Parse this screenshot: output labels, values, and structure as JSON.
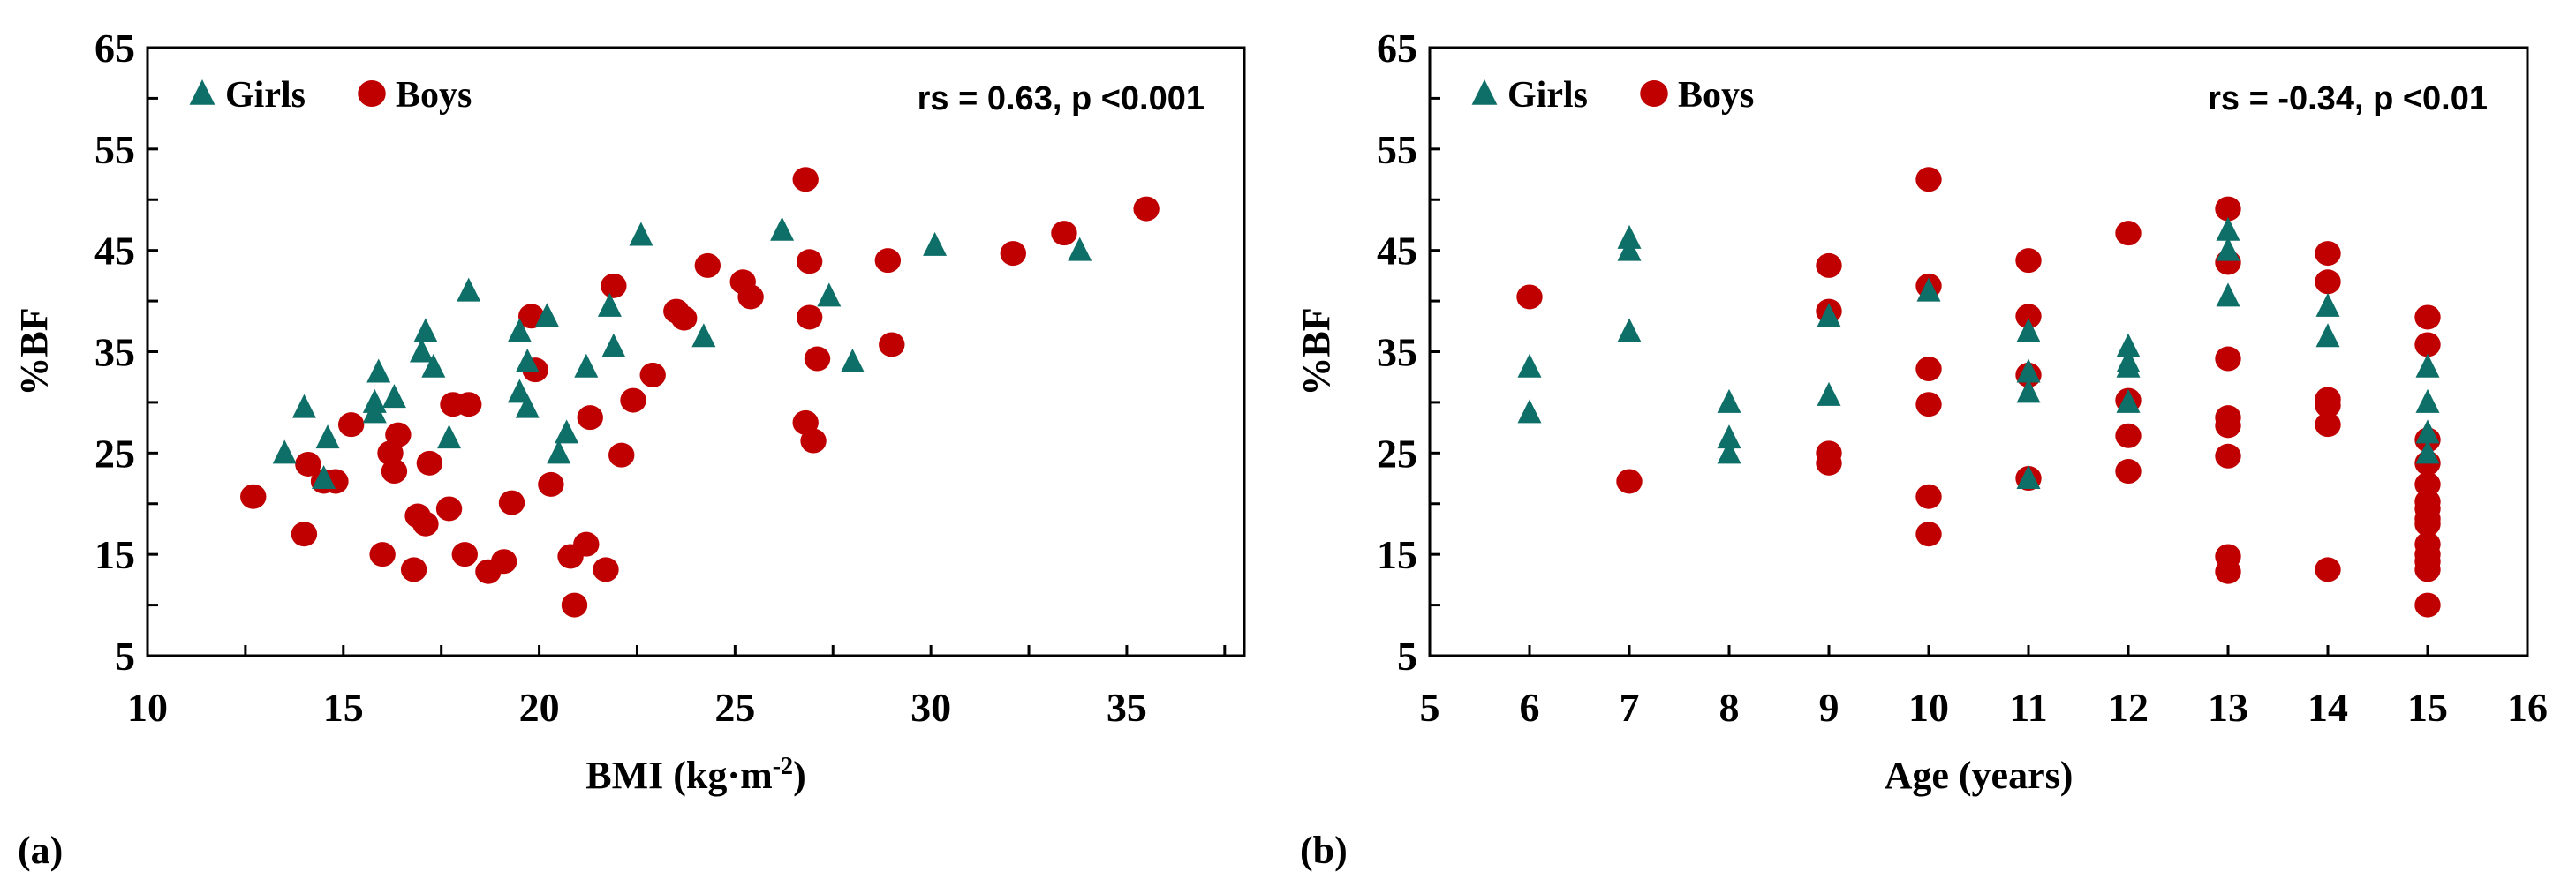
{
  "colors": {
    "girls": "#0e6e68",
    "boys": "#c00000",
    "axis": "#000000"
  },
  "chart_data": [
    {
      "type": "scatter",
      "panel_label": "(a)",
      "xlabel": "BMI (kg·m",
      "xlabel_sup": "-2",
      "xlabel_end": ")",
      "ylabel": "%BF",
      "annotation": "rs = 0.63, p <0.001",
      "xlim": [
        10,
        38
      ],
      "ylim": [
        5,
        65
      ],
      "xticks": [
        10,
        15,
        20,
        25,
        30,
        35
      ],
      "yticks": [
        5,
        15,
        25,
        35,
        45,
        55,
        65
      ],
      "legend": "top-left",
      "series": [
        {
          "name": "Girls",
          "marker": "triangle",
          "points": [
            [
              13.5,
              25
            ],
            [
              14,
              29.5
            ],
            [
              14.5,
              22.5
            ],
            [
              14.6,
              26.5
            ],
            [
              15.8,
              29
            ],
            [
              15.8,
              30
            ],
            [
              15.9,
              33
            ],
            [
              16.3,
              30.5
            ],
            [
              17,
              35
            ],
            [
              17.1,
              37
            ],
            [
              17.3,
              33.5
            ],
            [
              17.7,
              26.5
            ],
            [
              18.2,
              41
            ],
            [
              19.5,
              37
            ],
            [
              19.5,
              31
            ],
            [
              19.7,
              29.5
            ],
            [
              19.7,
              34
            ],
            [
              20.2,
              38.5
            ],
            [
              20.5,
              25
            ],
            [
              20.7,
              27
            ],
            [
              21.2,
              33.5
            ],
            [
              21.8,
              39.5
            ],
            [
              21.9,
              35.5
            ],
            [
              22.6,
              46.5
            ],
            [
              24.2,
              36.5
            ],
            [
              26.2,
              47
            ],
            [
              27.4,
              40.5
            ],
            [
              28,
              34
            ],
            [
              30.1,
              45.5
            ],
            [
              33.8,
              45
            ]
          ]
        },
        {
          "name": "Boys",
          "marker": "circle",
          "points": [
            [
              12.7,
              20.7
            ],
            [
              14,
              17
            ],
            [
              14.1,
              23.9
            ],
            [
              14.5,
              22.2
            ],
            [
              14.8,
              22.2
            ],
            [
              15.2,
              27.8
            ],
            [
              16,
              15
            ],
            [
              16.2,
              25
            ],
            [
              16.3,
              23.2
            ],
            [
              16.4,
              26.8
            ],
            [
              16.8,
              13.5
            ],
            [
              16.9,
              18.8
            ],
            [
              17.1,
              18
            ],
            [
              17.2,
              24
            ],
            [
              17.7,
              19.5
            ],
            [
              17.8,
              29.8
            ],
            [
              18.1,
              15
            ],
            [
              18.2,
              29.8
            ],
            [
              18.7,
              13.3
            ],
            [
              19.1,
              14.3
            ],
            [
              19.3,
              20.1
            ],
            [
              19.8,
              38.5
            ],
            [
              19.9,
              33.2
            ],
            [
              20.3,
              21.9
            ],
            [
              20.8,
              14.8
            ],
            [
              20.9,
              10
            ],
            [
              21.2,
              16
            ],
            [
              21.3,
              28.5
            ],
            [
              21.7,
              13.5
            ],
            [
              21.9,
              41.5
            ],
            [
              22.1,
              24.8
            ],
            [
              22.4,
              30.2
            ],
            [
              22.9,
              32.7
            ],
            [
              23.5,
              39
            ],
            [
              23.7,
              38.3
            ],
            [
              24.3,
              43.5
            ],
            [
              25.2,
              41.9
            ],
            [
              25.4,
              40.4
            ],
            [
              26.8,
              28
            ],
            [
              26.8,
              52
            ],
            [
              26.9,
              43.9
            ],
            [
              26.9,
              38.4
            ],
            [
              27,
              26.2
            ],
            [
              27.1,
              34.3
            ],
            [
              28.9,
              44
            ],
            [
              29,
              35.7
            ],
            [
              32.1,
              44.7
            ],
            [
              33.4,
              46.7
            ],
            [
              35.5,
              49.1
            ]
          ]
        }
      ]
    },
    {
      "type": "scatter",
      "panel_label": "(b)",
      "xlabel": "Age (years)",
      "ylabel": "%BF",
      "annotation": "rs = -0.34, p <0.01",
      "xlim": [
        5,
        16
      ],
      "ylim": [
        5,
        65
      ],
      "xticks": [
        5,
        6,
        7,
        8,
        9,
        10,
        11,
        12,
        13,
        14,
        15,
        16
      ],
      "yticks": [
        5,
        15,
        25,
        35,
        45,
        55,
        65
      ],
      "legend": "top-left",
      "series": [
        {
          "name": "Girls",
          "marker": "triangle",
          "points": [
            [
              6,
              33.5
            ],
            [
              6,
              29
            ],
            [
              7,
              46.2
            ],
            [
              7,
              45
            ],
            [
              7,
              37
            ],
            [
              8,
              30
            ],
            [
              8,
              26.5
            ],
            [
              8,
              25
            ],
            [
              9,
              38.5
            ],
            [
              9,
              30.7
            ],
            [
              10,
              41
            ],
            [
              11,
              37
            ],
            [
              11,
              33
            ],
            [
              11,
              31
            ],
            [
              11,
              22.5
            ],
            [
              12,
              35.5
            ],
            [
              12,
              34
            ],
            [
              12,
              33.5
            ],
            [
              12,
              30
            ],
            [
              13,
              47
            ],
            [
              13,
              45
            ],
            [
              13,
              40.5
            ],
            [
              14,
              39.5
            ],
            [
              14,
              36.5
            ],
            [
              15,
              33.5
            ],
            [
              15,
              30
            ],
            [
              15,
              27
            ],
            [
              15,
              25
            ]
          ]
        },
        {
          "name": "Boys",
          "marker": "circle",
          "points": [
            [
              6,
              40.4
            ],
            [
              7,
              22.2
            ],
            [
              9,
              43.5
            ],
            [
              9,
              39
            ],
            [
              9,
              25
            ],
            [
              9,
              24
            ],
            [
              10,
              52
            ],
            [
              10,
              41.5
            ],
            [
              10,
              33.3
            ],
            [
              10,
              29.8
            ],
            [
              10,
              20.7
            ],
            [
              10,
              17
            ],
            [
              11,
              44
            ],
            [
              11,
              38.5
            ],
            [
              11,
              32.7
            ],
            [
              11,
              22.5
            ],
            [
              12,
              46.7
            ],
            [
              12,
              30.2
            ],
            [
              12,
              26.7
            ],
            [
              12,
              23.2
            ],
            [
              13,
              49.1
            ],
            [
              13,
              43.8
            ],
            [
              13,
              34.3
            ],
            [
              13,
              28.5
            ],
            [
              13,
              27.7
            ],
            [
              13,
              24.7
            ],
            [
              13,
              14.8
            ],
            [
              13,
              13.3
            ],
            [
              14,
              44.7
            ],
            [
              14,
              41.9
            ],
            [
              14,
              30.3
            ],
            [
              14,
              29.7
            ],
            [
              14,
              27.8
            ],
            [
              14,
              13.5
            ],
            [
              15,
              38.4
            ],
            [
              15,
              35.7
            ],
            [
              15,
              26.3
            ],
            [
              15,
              24
            ],
            [
              15,
              21.9
            ],
            [
              15,
              20.2
            ],
            [
              15,
              19.5
            ],
            [
              15,
              18.5
            ],
            [
              15,
              18
            ],
            [
              15,
              16
            ],
            [
              15,
              15
            ],
            [
              15,
              14.3
            ],
            [
              15,
              13.5
            ],
            [
              15,
              10
            ]
          ]
        }
      ]
    }
  ]
}
